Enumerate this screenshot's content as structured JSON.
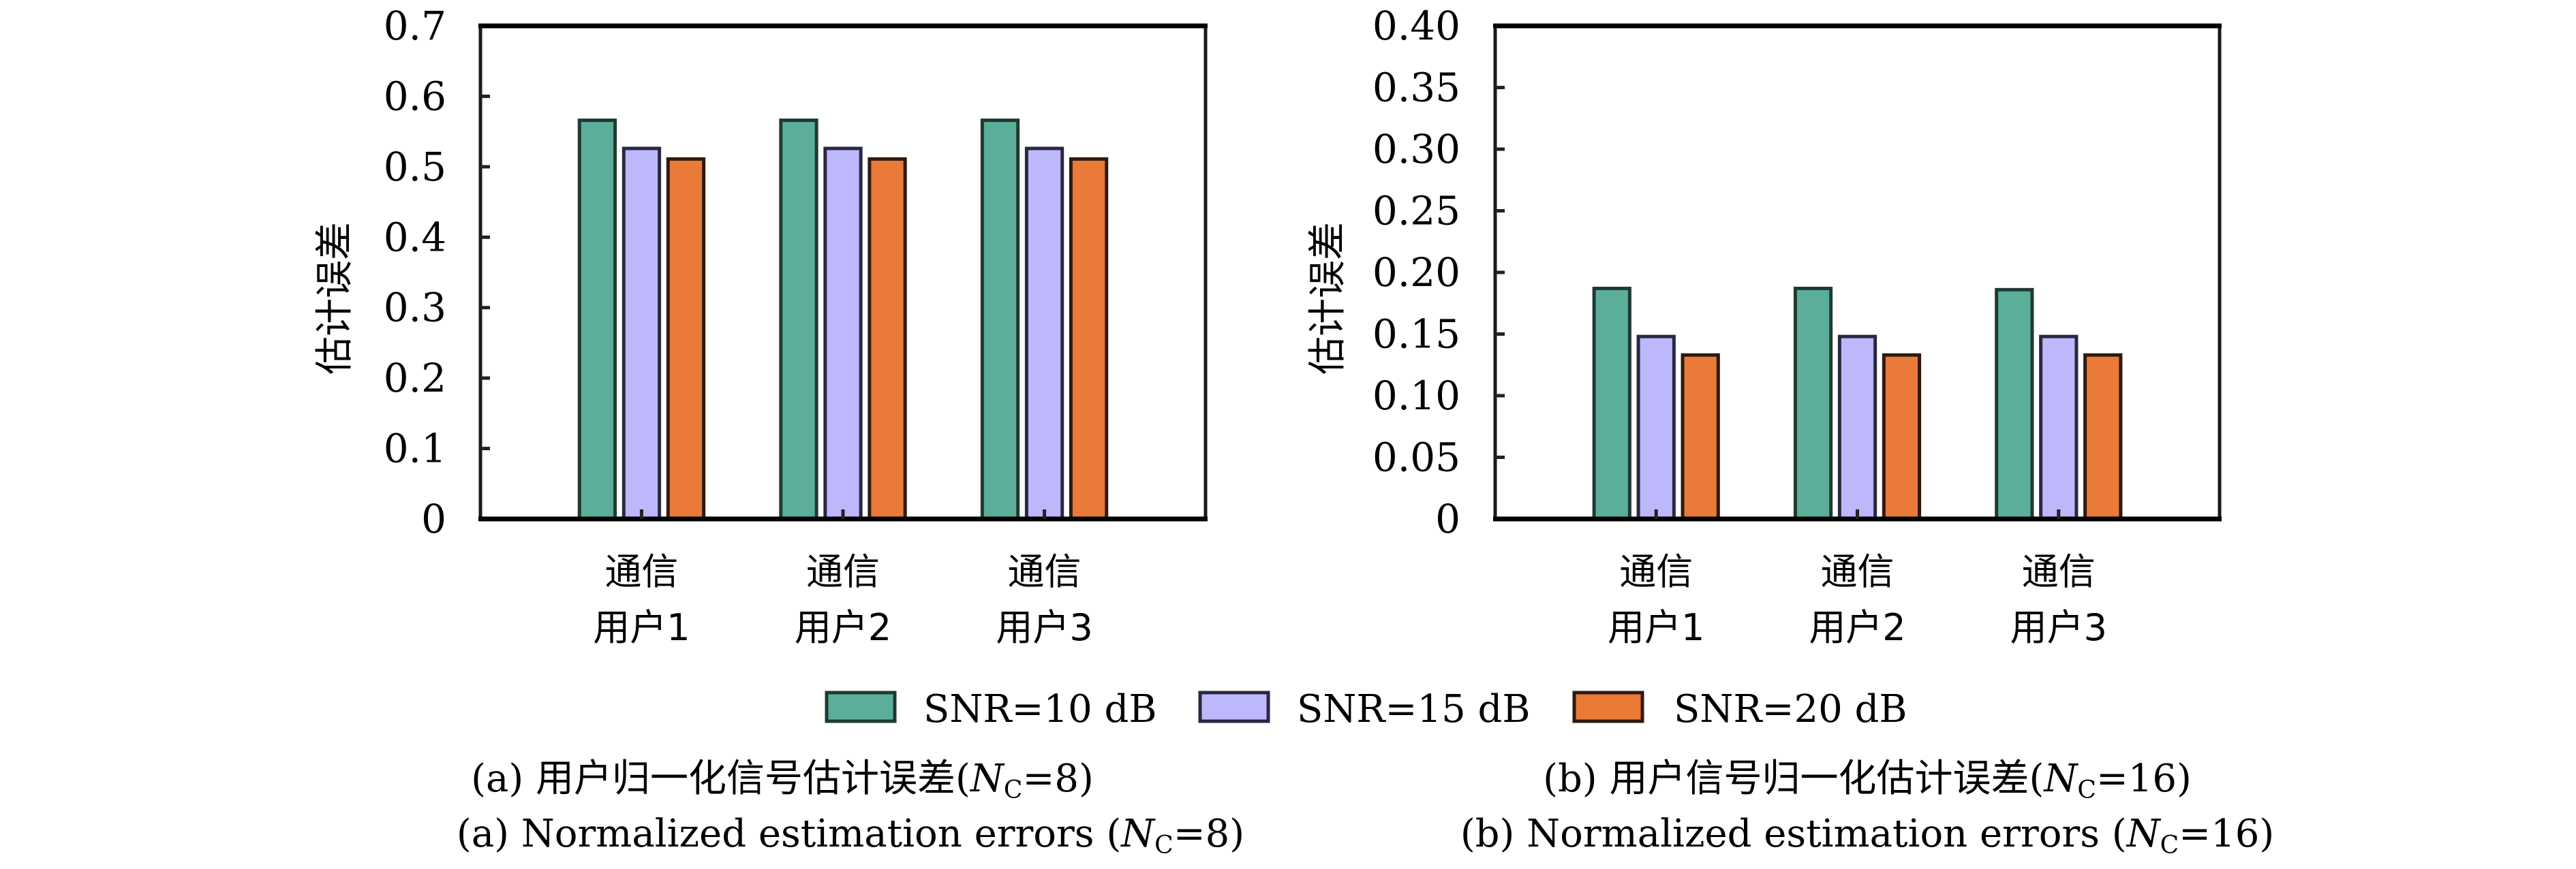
{
  "legend": {
    "items": [
      {
        "label": "SNR=10 dB",
        "color": "#5BAE9A",
        "edge": "#1f3a33"
      },
      {
        "label": "SNR=15 dB",
        "color": "#BDB7FC",
        "edge": "#2a2840"
      },
      {
        "label": "SNR=20 dB",
        "color": "#E97A38",
        "edge": "#2e1a10"
      }
    ]
  },
  "chart_data": [
    {
      "type": "bar",
      "title": "",
      "ylabel": "估计误差",
      "xlabel": "",
      "categories": [
        [
          "通信",
          "用户1"
        ],
        [
          "通信",
          "用户2"
        ],
        [
          "通信",
          "用户3"
        ]
      ],
      "ylim": [
        0,
        0.7
      ],
      "yticks": [
        0,
        0.1,
        0.2,
        0.3,
        0.4,
        0.5,
        0.6,
        0.7
      ],
      "ytick_labels": [
        "0",
        "0.1",
        "0.2",
        "0.3",
        "0.4",
        "0.5",
        "0.6",
        "0.7"
      ],
      "grid": false,
      "series": [
        {
          "name": "SNR=10 dB",
          "values": [
            0.566,
            0.566,
            0.566
          ]
        },
        {
          "name": "SNR=15 dB",
          "values": [
            0.526,
            0.526,
            0.526
          ]
        },
        {
          "name": "SNR=20 dB",
          "values": [
            0.511,
            0.511,
            0.511
          ]
        }
      ],
      "caption_cn": [
        "(a) 用户归一化信号估计误差(",
        "N",
        "C",
        "=8)"
      ],
      "caption_en": [
        "(a) Normalized estimation errors (",
        "N",
        "C",
        "=8)"
      ]
    },
    {
      "type": "bar",
      "title": "",
      "ylabel": "估计误差",
      "xlabel": "",
      "categories": [
        [
          "通信",
          "用户1"
        ],
        [
          "通信",
          "用户2"
        ],
        [
          "通信",
          "用户3"
        ]
      ],
      "ylim": [
        0,
        0.4
      ],
      "yticks": [
        0,
        0.05,
        0.1,
        0.15,
        0.2,
        0.25,
        0.3,
        0.35,
        0.4
      ],
      "ytick_labels": [
        "0",
        "0.05",
        "0.10",
        "0.15",
        "0.20",
        "0.25",
        "0.30",
        "0.35",
        "0.40"
      ],
      "grid": false,
      "series": [
        {
          "name": "SNR=10 dB",
          "values": [
            0.187,
            0.187,
            0.186
          ]
        },
        {
          "name": "SNR=15 dB",
          "values": [
            0.148,
            0.148,
            0.148
          ]
        },
        {
          "name": "SNR=20 dB",
          "values": [
            0.133,
            0.133,
            0.133
          ]
        }
      ],
      "caption_cn": [
        "(b) 用户信号归一化估计误差(",
        "N",
        "C",
        "=16)"
      ],
      "caption_en": [
        "(b) Normalized estimation errors (",
        "N",
        "C",
        "=16)"
      ]
    }
  ]
}
